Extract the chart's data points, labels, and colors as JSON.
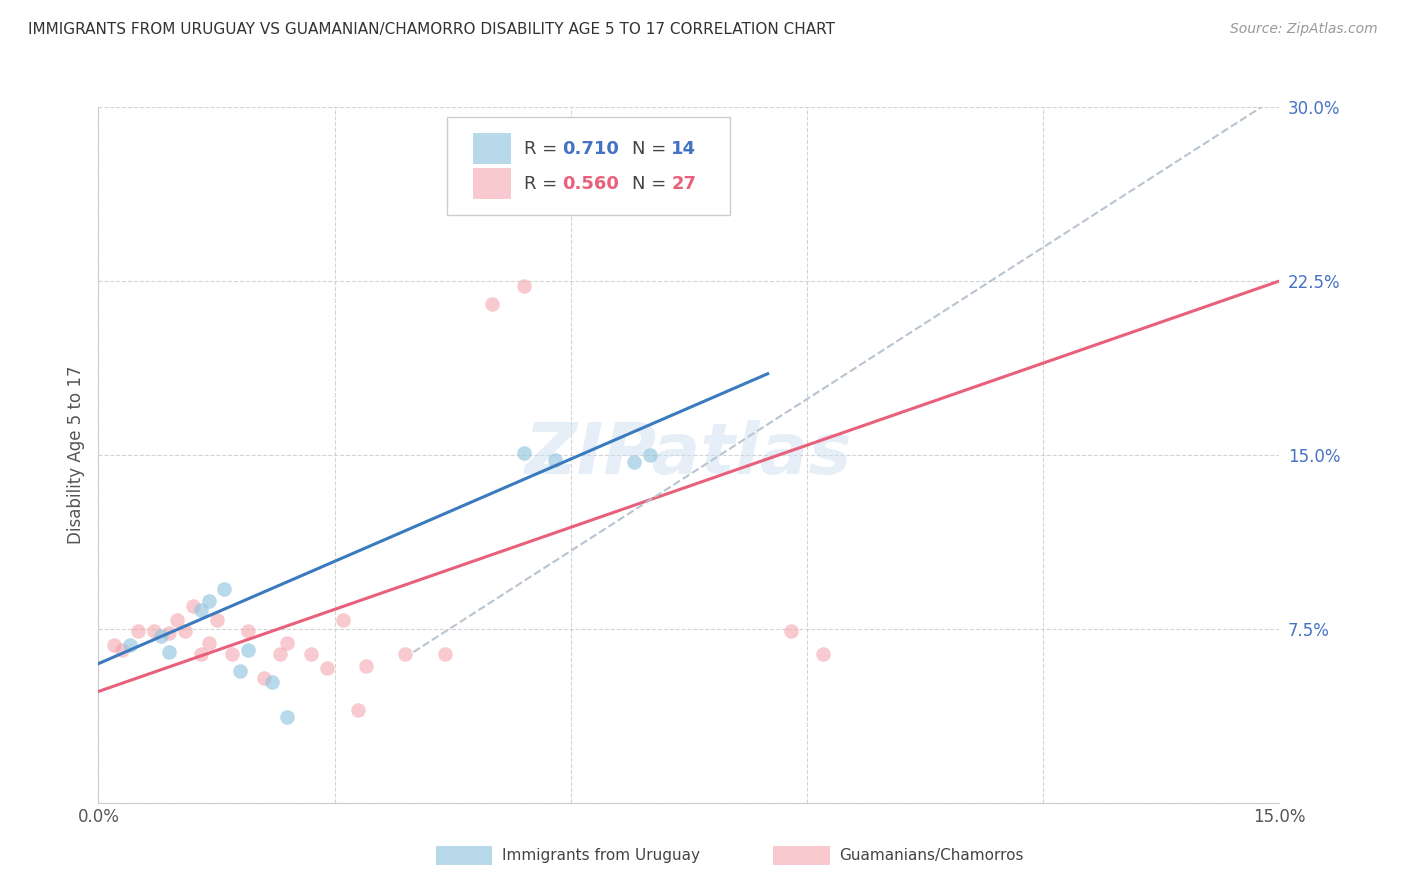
{
  "title": "IMMIGRANTS FROM URUGUAY VS GUAMANIAN/CHAMORRO DISABILITY AGE 5 TO 17 CORRELATION CHART",
  "source": "Source: ZipAtlas.com",
  "ylabel": "Disability Age 5 to 17",
  "xlim": [
    0.0,
    0.15
  ],
  "ylim": [
    0.0,
    0.3
  ],
  "xticks": [
    0.0,
    0.03,
    0.06,
    0.09,
    0.12,
    0.15
  ],
  "yticks": [
    0.0,
    0.075,
    0.15,
    0.225,
    0.3
  ],
  "xtick_labels": [
    "0.0%",
    "",
    "",
    "",
    "",
    "15.0%"
  ],
  "ytick_labels": [
    "",
    "7.5%",
    "15.0%",
    "22.5%",
    "30.0%"
  ],
  "color_blue": "#92c5de",
  "color_pink": "#f4a0a8",
  "color_trendline_blue": "#3a7abf",
  "color_trendline_pink": "#e8607a",
  "color_dashed": "#b8c4d0",
  "watermark": "ZIPatlas",
  "blue_x": [
    0.004,
    0.008,
    0.009,
    0.013,
    0.014,
    0.016,
    0.018,
    0.019,
    0.022,
    0.024,
    0.054,
    0.058,
    0.068,
    0.07
  ],
  "blue_y": [
    0.068,
    0.072,
    0.065,
    0.083,
    0.087,
    0.092,
    0.057,
    0.066,
    0.052,
    0.037,
    0.151,
    0.148,
    0.147,
    0.15
  ],
  "pink_x": [
    0.002,
    0.003,
    0.005,
    0.007,
    0.009,
    0.01,
    0.011,
    0.012,
    0.013,
    0.014,
    0.015,
    0.017,
    0.019,
    0.021,
    0.023,
    0.024,
    0.027,
    0.029,
    0.031,
    0.033,
    0.034,
    0.039,
    0.044,
    0.05,
    0.054,
    0.088,
    0.092
  ],
  "pink_y": [
    0.068,
    0.066,
    0.074,
    0.074,
    0.073,
    0.079,
    0.074,
    0.085,
    0.064,
    0.069,
    0.079,
    0.064,
    0.074,
    0.054,
    0.064,
    0.069,
    0.064,
    0.058,
    0.079,
    0.04,
    0.059,
    0.064,
    0.064,
    0.215,
    0.223,
    0.074,
    0.064
  ],
  "blue_trend_x": [
    0.0,
    0.085
  ],
  "blue_trend_y": [
    0.06,
    0.185
  ],
  "pink_trend_x": [
    0.0,
    0.15
  ],
  "pink_trend_y": [
    0.048,
    0.225
  ],
  "dashed_trend_x": [
    0.04,
    0.15
  ],
  "dashed_trend_y": [
    0.065,
    0.305
  ],
  "legend_r1": "0.710",
  "legend_n1": "14",
  "legend_r2": "0.560",
  "legend_n2": "27",
  "bottom_label1": "Immigrants from Uruguay",
  "bottom_label2": "Guamanians/Chamorros"
}
